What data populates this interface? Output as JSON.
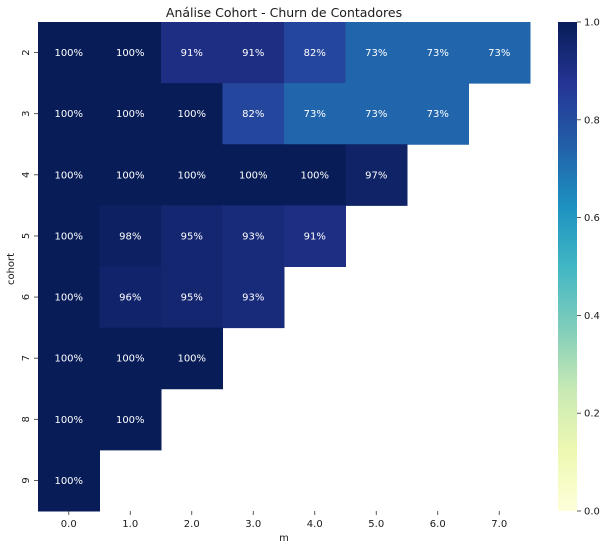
{
  "chart_data": {
    "type": "heatmap",
    "title": "Análise Cohort - Churn de Contadores",
    "xlabel": "m",
    "ylabel": "cohort",
    "x_categories": [
      "0.0",
      "1.0",
      "2.0",
      "3.0",
      "4.0",
      "5.0",
      "6.0",
      "7.0"
    ],
    "y_categories": [
      "2",
      "3",
      "4",
      "5",
      "6",
      "7",
      "8",
      "9"
    ],
    "values": [
      [
        1.0,
        1.0,
        0.91,
        0.91,
        0.82,
        0.73,
        0.73,
        0.73
      ],
      [
        1.0,
        1.0,
        1.0,
        0.82,
        0.73,
        0.73,
        0.73,
        null
      ],
      [
        1.0,
        1.0,
        1.0,
        1.0,
        1.0,
        0.97,
        null,
        null
      ],
      [
        1.0,
        0.98,
        0.95,
        0.93,
        0.91,
        null,
        null,
        null
      ],
      [
        1.0,
        0.96,
        0.95,
        0.93,
        null,
        null,
        null,
        null
      ],
      [
        1.0,
        1.0,
        1.0,
        null,
        null,
        null,
        null,
        null
      ],
      [
        1.0,
        1.0,
        null,
        null,
        null,
        null,
        null,
        null
      ],
      [
        1.0,
        null,
        null,
        null,
        null,
        null,
        null,
        null
      ]
    ],
    "annotations": [
      [
        "100%",
        "100%",
        "91%",
        "91%",
        "82%",
        "73%",
        "73%",
        "73%"
      ],
      [
        "100%",
        "100%",
        "100%",
        "82%",
        "73%",
        "73%",
        "73%",
        ""
      ],
      [
        "100%",
        "100%",
        "100%",
        "100%",
        "100%",
        "97%",
        "",
        ""
      ],
      [
        "100%",
        "98%",
        "95%",
        "93%",
        "91%",
        "",
        "",
        ""
      ],
      [
        "100%",
        "96%",
        "95%",
        "93%",
        "",
        "",
        "",
        ""
      ],
      [
        "100%",
        "100%",
        "100%",
        "",
        "",
        "",
        "",
        ""
      ],
      [
        "100%",
        "100%",
        "",
        "",
        "",
        "",
        "",
        ""
      ],
      [
        "100%",
        "",
        "",
        "",
        "",
        "",
        "",
        ""
      ]
    ],
    "colormap": "YlGnBu",
    "colorbar": {
      "range": [
        0.0,
        1.0
      ],
      "ticks": [
        "0.0",
        "0.2",
        "0.4",
        "0.6",
        "0.8",
        "1.0"
      ]
    },
    "grid": false
  }
}
